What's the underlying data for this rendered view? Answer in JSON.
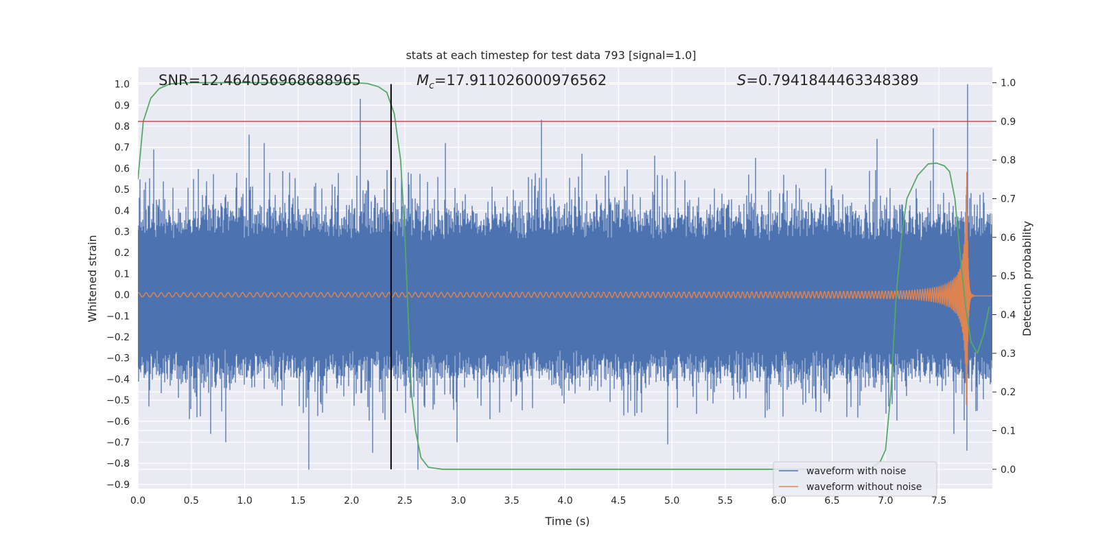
{
  "chart_data": {
    "type": "line",
    "title": "stats at each timestep for test data 793 [signal=1.0]",
    "xlabel": "Time (s)",
    "ylabel": "Whitened strain",
    "y2label": "Detection probability",
    "xlim": [
      0.0,
      8.0
    ],
    "ylim": [
      -0.92,
      1.08
    ],
    "y2lim": [
      -0.05,
      1.04
    ],
    "xticks": [
      "0.0",
      "0.5",
      "1.0",
      "1.5",
      "2.0",
      "2.5",
      "3.0",
      "3.5",
      "4.0",
      "4.5",
      "5.0",
      "5.5",
      "6.0",
      "6.5",
      "7.0",
      "7.5"
    ],
    "yticks": [
      "1.0",
      "0.9",
      "0.8",
      "0.7",
      "0.6",
      "0.5",
      "0.4",
      "0.3",
      "0.2",
      "0.1",
      "0.0",
      "−0.1",
      "−0.2",
      "−0.3",
      "−0.4",
      "−0.5",
      "−0.6",
      "−0.7",
      "−0.8",
      "−0.9"
    ],
    "y2ticks": [
      "1.0",
      "0.9",
      "0.8",
      "0.7",
      "0.6",
      "0.5",
      "0.4",
      "0.3",
      "0.2",
      "0.1",
      "0.0"
    ],
    "grid": true,
    "background": "#eaeaf2",
    "annotations": {
      "snr": "SNR=12.464056968688965",
      "mc_symbol": "M",
      "mc_sub": "c",
      "mc_value": "=17.911026000976562",
      "s_symbol": "S",
      "s_value": "=0.7941844463348389"
    },
    "vertical_marker": {
      "x": 2.37,
      "color": "#000000"
    },
    "threshold_line": {
      "y2": 0.9,
      "color": "#c44e52"
    },
    "series": [
      {
        "name": "waveform with noise",
        "axis": "left",
        "color": "#4c72b0",
        "envelope_typical": 0.3,
        "spikes": [
          [
            0.15,
            0.69
          ],
          [
            0.52,
            0.55
          ],
          [
            0.68,
            -0.66
          ],
          [
            0.82,
            -0.7
          ],
          [
            1.04,
            0.76
          ],
          [
            1.18,
            0.72
          ],
          [
            1.42,
            0.58
          ],
          [
            1.6,
            -0.83
          ],
          [
            2.08,
            0.93
          ],
          [
            2.2,
            -0.75
          ],
          [
            2.62,
            -0.83
          ],
          [
            2.88,
            0.72
          ],
          [
            2.99,
            -0.7
          ],
          [
            3.78,
            0.83
          ],
          [
            4.16,
            0.67
          ],
          [
            4.84,
            0.66
          ],
          [
            4.96,
            -0.71
          ],
          [
            5.78,
            0.65
          ],
          [
            6.92,
            0.74
          ],
          [
            7.45,
            0.79
          ],
          [
            7.64,
            -0.66
          ],
          [
            7.77,
            1.0
          ],
          [
            7.76,
            -0.74
          ]
        ]
      },
      {
        "name": "waveform without noise",
        "axis": "left",
        "color": "#dd8452",
        "chirp_end": 7.76,
        "amplitude_start": 0.01,
        "amplitude_peak": 0.65
      },
      {
        "name": "Detection probability",
        "axis": "right",
        "color": "#55a868",
        "points": [
          [
            0.0,
            0.75
          ],
          [
            0.05,
            0.9
          ],
          [
            0.12,
            0.96
          ],
          [
            0.2,
            0.985
          ],
          [
            0.3,
            0.997
          ],
          [
            0.5,
            1.0
          ],
          [
            1.0,
            1.0
          ],
          [
            1.5,
            1.0
          ],
          [
            2.0,
            1.0
          ],
          [
            2.15,
            0.998
          ],
          [
            2.25,
            0.99
          ],
          [
            2.33,
            0.975
          ],
          [
            2.4,
            0.92
          ],
          [
            2.46,
            0.8
          ],
          [
            2.5,
            0.6
          ],
          [
            2.53,
            0.4
          ],
          [
            2.56,
            0.2
          ],
          [
            2.6,
            0.1
          ],
          [
            2.65,
            0.03
          ],
          [
            2.72,
            0.005
          ],
          [
            2.85,
            0.0
          ],
          [
            3.5,
            0.0
          ],
          [
            4.5,
            0.0
          ],
          [
            5.5,
            0.0
          ],
          [
            6.5,
            0.0
          ],
          [
            6.85,
            0.0
          ],
          [
            6.95,
            0.02
          ],
          [
            7.0,
            0.05
          ],
          [
            7.05,
            0.2
          ],
          [
            7.1,
            0.45
          ],
          [
            7.15,
            0.6
          ],
          [
            7.2,
            0.7
          ],
          [
            7.3,
            0.76
          ],
          [
            7.4,
            0.79
          ],
          [
            7.48,
            0.792
          ],
          [
            7.55,
            0.785
          ],
          [
            7.6,
            0.77
          ],
          [
            7.65,
            0.7
          ],
          [
            7.7,
            0.55
          ],
          [
            7.75,
            0.42
          ],
          [
            7.8,
            0.33
          ],
          [
            7.86,
            0.3
          ],
          [
            7.92,
            0.35
          ],
          [
            7.97,
            0.42
          ]
        ]
      }
    ],
    "legend": {
      "placement": "bottom-right",
      "entries": [
        "waveform with noise",
        "waveform without noise"
      ]
    }
  }
}
